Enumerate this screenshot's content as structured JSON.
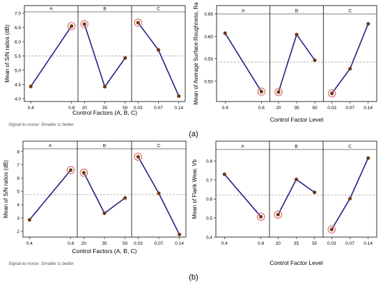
{
  "figure": {
    "row_labels": [
      "(a)",
      "(b)"
    ]
  },
  "chart_data": [
    {
      "type": "line",
      "ylabel": "Mean of S/N ratios (dB)",
      "xlabel": "Control Factors (A, B, C)",
      "footnote": "Signal-to-noise: Smaller is better",
      "ylim": [
        3.9,
        7.05
      ],
      "yticks": [
        4.0,
        4.5,
        5.0,
        5.5,
        6.0,
        6.5,
        7.0
      ],
      "ytick_labels": [
        "4.0",
        "4.5",
        "5.0",
        "5.5",
        "6.0",
        "6.5",
        "7.0"
      ],
      "ref_line": 5.5,
      "panels": [
        {
          "name": "A",
          "x": [
            "0.4",
            "0.8"
          ],
          "values": [
            4.43,
            6.55
          ],
          "highlight": 1
        },
        {
          "name": "B",
          "x": [
            "20",
            "35",
            "50"
          ],
          "values": [
            6.62,
            4.42,
            5.43
          ],
          "highlight": 0
        },
        {
          "name": "C",
          "x": [
            "0.03",
            "0.07",
            "0.14"
          ],
          "values": [
            6.67,
            5.71,
            4.09
          ],
          "highlight": 0
        }
      ]
    },
    {
      "type": "line",
      "ylabel": "Mean of Average Surface Roughness, Ra",
      "xlabel": "Control Factor Level",
      "ylim": [
        0.455,
        0.65
      ],
      "yticks": [
        0.5,
        0.55,
        0.6,
        0.65
      ],
      "ytick_labels": [
        "0.50",
        "0.55",
        "0.60",
        "0.65"
      ],
      "ref_line": 0.543,
      "panels": [
        {
          "name": "A",
          "x": [
            "0.4",
            "0.8"
          ],
          "values": [
            0.607,
            0.477
          ],
          "highlight": 1
        },
        {
          "name": "B",
          "x": [
            "20",
            "35",
            "50"
          ],
          "values": [
            0.476,
            0.604,
            0.547
          ],
          "highlight": 0
        },
        {
          "name": "C",
          "x": [
            "0.03",
            "0.07",
            "0.14"
          ],
          "values": [
            0.473,
            0.528,
            0.628
          ],
          "highlight": 0
        }
      ]
    },
    {
      "type": "line",
      "ylabel": "Mean of S/N ratios (dB)",
      "xlabel": "Control Factors (A, B, C)",
      "footnote": "Signal-to-noise: Smaller is better",
      "ylim": [
        1.55,
        8.2
      ],
      "yticks": [
        2,
        3,
        4,
        5,
        6,
        7,
        8
      ],
      "ytick_labels": [
        "2",
        "3",
        "4",
        "5",
        "6",
        "7",
        "8"
      ],
      "ref_line": 4.75,
      "panels": [
        {
          "name": "A",
          "x": [
            "0.4",
            "0.8"
          ],
          "values": [
            2.85,
            6.6
          ],
          "highlight": 1
        },
        {
          "name": "B",
          "x": [
            "20",
            "35",
            "50"
          ],
          "values": [
            6.4,
            3.35,
            4.5
          ],
          "highlight": 0
        },
        {
          "name": "C",
          "x": [
            "0.03",
            "0.07",
            "0.14"
          ],
          "values": [
            7.6,
            4.85,
            1.75
          ],
          "highlight": 0
        }
      ]
    },
    {
      "type": "line",
      "ylabel": "Mean of Flank Wear, Vb",
      "xlabel": "Control Factor Level",
      "ylim": [
        0.4,
        0.86
      ],
      "yticks": [
        0.4,
        0.5,
        0.6,
        0.7,
        0.8
      ],
      "ytick_labels": [
        "0.4",
        "0.5",
        "0.6",
        "0.7",
        "0.8"
      ],
      "ref_line": 0.62,
      "panels": [
        {
          "name": "A",
          "x": [
            "0.4",
            "0.8"
          ],
          "values": [
            0.73,
            0.507
          ],
          "highlight": 1
        },
        {
          "name": "B",
          "x": [
            "20",
            "35",
            "50"
          ],
          "values": [
            0.518,
            0.703,
            0.635
          ],
          "highlight": 0
        },
        {
          "name": "C",
          "x": [
            "0.03",
            "0.07",
            "0.14"
          ],
          "values": [
            0.44,
            0.602,
            0.815
          ],
          "highlight": 0
        }
      ]
    }
  ]
}
